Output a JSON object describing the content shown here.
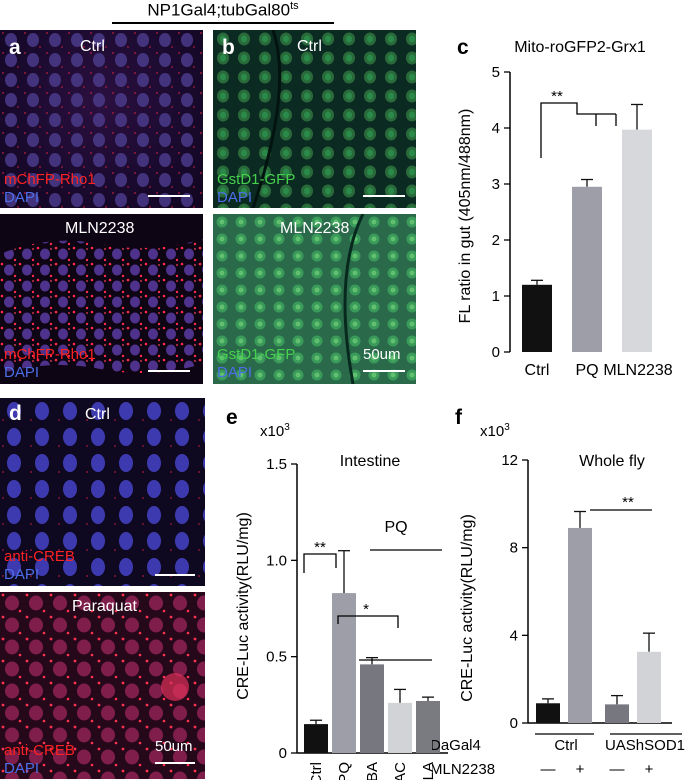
{
  "header": {
    "genotype": "NP1Gal4;tubGal80",
    "genotype_sup": "ts"
  },
  "panels": {
    "a": {
      "letter": "a",
      "top_condition": "Ctrl",
      "bottom_condition": "MLN2238",
      "stain1": "mChFP-Rho1",
      "stain2": "DAPI"
    },
    "b": {
      "letter": "b",
      "top_condition": "Ctrl",
      "bottom_condition": "MLN2238",
      "stain1": "GstD1-GFP",
      "stain2": "DAPI",
      "scale": "50um"
    },
    "c": {
      "letter": "c"
    },
    "d": {
      "letter": "d",
      "top_condition": "Ctrl",
      "bottom_condition": "Paraquat",
      "stain1": "anti-CREB",
      "stain2": "DAPI",
      "scale": "50um"
    },
    "e": {
      "letter": "e"
    },
    "f": {
      "letter": "f"
    }
  },
  "chart_data": [
    {
      "id": "c",
      "type": "bar",
      "title": "Mito-roGFP2-Grx1",
      "ylabel": "FL ratio in gut (405nm/488nm)",
      "categories": [
        "Ctrl",
        "PQ",
        "MLN2238"
      ],
      "values": [
        1.2,
        2.95,
        3.97
      ],
      "errors": [
        0.08,
        0.13,
        0.45
      ],
      "colors": [
        "#111111",
        "#9d9ea8",
        "#d7d8dc"
      ],
      "ylim": [
        0,
        5
      ],
      "yticks": [
        0,
        1,
        2,
        3,
        4,
        5
      ],
      "significance": [
        "**"
      ]
    },
    {
      "id": "e",
      "type": "bar",
      "title": "Intestine",
      "ylabel": "CRE-Luc activity(RLU/mg)",
      "multiplier": "x10",
      "multiplier_exp": "3",
      "categories": [
        "Ctrl",
        "PQ",
        "PBA",
        "NAC",
        "αLA"
      ],
      "values": [
        0.15,
        0.83,
        0.46,
        0.26,
        0.27
      ],
      "errors": [
        0.02,
        0.22,
        0.035,
        0.07,
        0.02
      ],
      "colors": [
        "#111111",
        "#9d9ea8",
        "#76777f",
        "#d2d3d7",
        "#7a7b80"
      ],
      "ylim": [
        0,
        1.5
      ],
      "yticks": [
        "0",
        "0.5",
        "1.0",
        "1.5"
      ],
      "group_label": "PQ",
      "significance": [
        "**",
        "*"
      ]
    },
    {
      "id": "f",
      "type": "bar",
      "title": "Whole fly",
      "ylabel": "CRE-Luc activity(RLU/mg)",
      "multiplier": "x10",
      "multiplier_exp": "3",
      "categories": [
        "Ctrl −",
        "Ctrl +",
        "UAShSOD1 −",
        "UAShSOD1 +"
      ],
      "values": [
        0.9,
        8.9,
        0.85,
        3.25
      ],
      "errors": [
        0.2,
        0.75,
        0.4,
        0.85
      ],
      "colors": [
        "#111111",
        "#9d9ea8",
        "#76777f",
        "#d2d3d7"
      ],
      "ylim": [
        0,
        12
      ],
      "yticks": [
        "0",
        "4",
        "8",
        "12"
      ],
      "significance": [
        "**"
      ],
      "row_labels": [
        "DaGal4",
        "MLN2238"
      ],
      "group_labels": [
        "Ctrl",
        "UAShSOD1"
      ],
      "signs": [
        "—",
        "+",
        "—",
        "+"
      ]
    }
  ]
}
